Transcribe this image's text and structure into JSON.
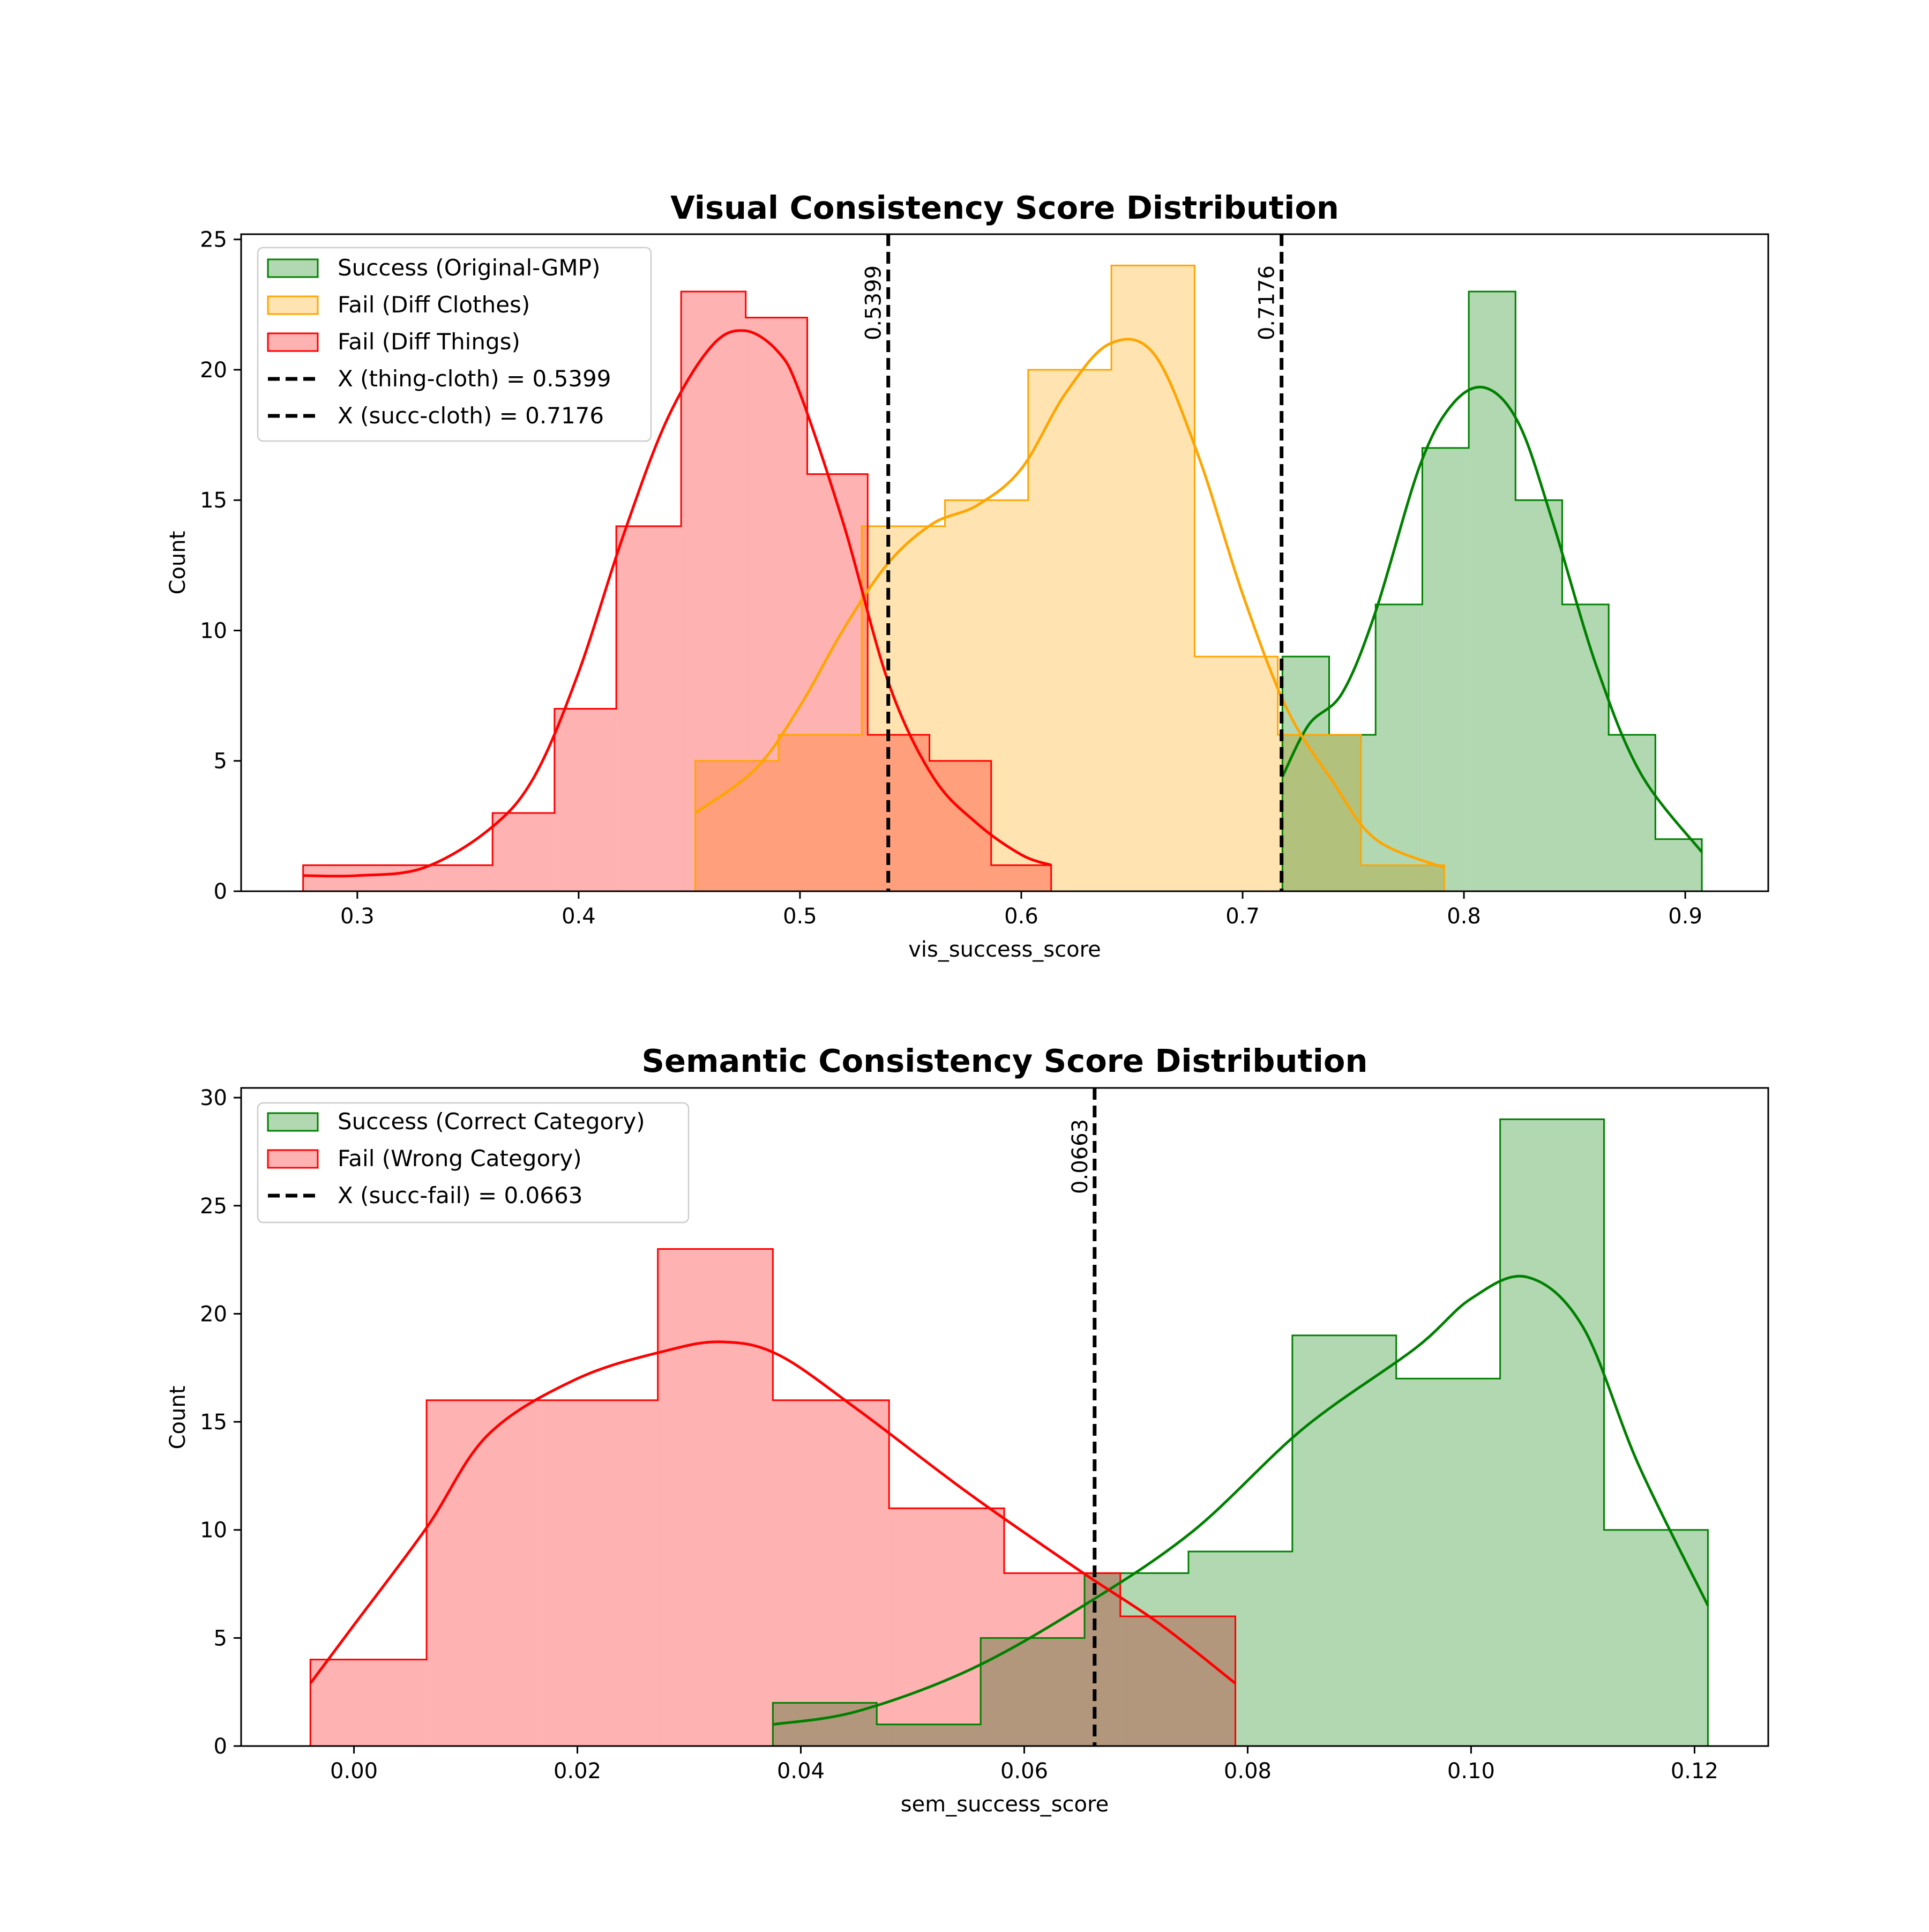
{
  "colors": {
    "success": "#008000",
    "success_fill": "#B2D8B2",
    "cloth": "#FFA500",
    "cloth_fill": "#FFE4B2",
    "thing": "#FF0000",
    "thing_fill": "#FFB2B2",
    "threshold": "#000000"
  },
  "chart_data": [
    {
      "type": "histogram",
      "title": "Visual Consistency Score Distribution",
      "xlabel": "vis_success_score",
      "ylabel": "Count",
      "xlim": [
        0.2475,
        0.9375
      ],
      "ylim": [
        0,
        25.2
      ],
      "xticks": [
        0.3,
        0.4,
        0.5,
        0.6,
        0.7,
        0.8,
        0.9
      ],
      "xtick_labels": [
        "0.3",
        "0.4",
        "0.5",
        "0.6",
        "0.7",
        "0.8",
        "0.9"
      ],
      "yticks": [
        0,
        5,
        10,
        15,
        20,
        25
      ],
      "ytick_labels": [
        "0",
        "5",
        "10",
        "15",
        "20",
        "25"
      ],
      "legend_position": "top-left",
      "series": [
        {
          "name": "Success (Original-GMP)",
          "color_key": "success",
          "bins": [
            0.718,
            0.7391,
            0.7601,
            0.7812,
            0.8022,
            0.8233,
            0.8444,
            0.8654,
            0.8865,
            0.9075
          ],
          "counts": [
            9,
            6,
            11,
            17,
            23,
            15,
            11,
            6,
            2
          ],
          "kde_x": [
            0.718,
            0.73,
            0.745,
            0.76,
            0.78,
            0.795,
            0.81,
            0.825,
            0.84,
            0.86,
            0.88,
            0.9075
          ],
          "kde_y": [
            4.4,
            6.4,
            7.6,
            10.7,
            16.3,
            18.7,
            19.3,
            17.9,
            14.2,
            8.6,
            4.5,
            1.5
          ]
        },
        {
          "name": "Fail (Diff Clothes)",
          "color_key": "cloth",
          "bins": [
            0.4527,
            0.4903,
            0.5279,
            0.5655,
            0.6031,
            0.6407,
            0.6783,
            0.7159,
            0.7535,
            0.7911
          ],
          "counts": [
            5,
            6,
            14,
            15,
            20,
            24,
            9,
            6,
            1
          ],
          "kde_x": [
            0.4527,
            0.48,
            0.5,
            0.52,
            0.54,
            0.56,
            0.58,
            0.6,
            0.62,
            0.64,
            0.66,
            0.68,
            0.7,
            0.72,
            0.74,
            0.76,
            0.7911
          ],
          "kde_y": [
            3.0,
            4.7,
            7.1,
            10.1,
            12.6,
            14.1,
            14.8,
            16.2,
            19.1,
            21.0,
            20.6,
            16.7,
            11.4,
            7.0,
            4.3,
            2.0,
            0.9
          ]
        },
        {
          "name": "Fail (Diff Things)",
          "color_key": "thing",
          "bins": [
            0.2755,
            0.3034,
            0.3313,
            0.3611,
            0.3891,
            0.417,
            0.4463,
            0.4755,
            0.5033,
            0.5306,
            0.5585,
            0.5864,
            0.6135
          ],
          "counts": [
            1,
            1,
            1,
            3,
            7,
            14,
            23,
            22,
            16,
            6,
            5,
            1
          ],
          "kde_x": [
            0.2755,
            0.3,
            0.33,
            0.36,
            0.38,
            0.4,
            0.42,
            0.44,
            0.46,
            0.475,
            0.49,
            0.5,
            0.52,
            0.54,
            0.56,
            0.58,
            0.6,
            0.6135
          ],
          "kde_y": [
            0.6,
            0.6,
            0.9,
            2.4,
            4.4,
            8.4,
            13.6,
            18.1,
            20.9,
            21.5,
            20.7,
            19.1,
            14.0,
            8.0,
            4.4,
            2.6,
            1.4,
            1.0
          ]
        }
      ],
      "thresholds": [
        {
          "name": "X (thing-cloth) = 0.5399",
          "value": 0.5399,
          "label": "0.5399"
        },
        {
          "name": "X (succ-cloth) = 0.7176",
          "value": 0.7176,
          "label": "0.7176"
        }
      ]
    },
    {
      "type": "histogram",
      "title": "Semantic Consistency Score Distribution",
      "xlabel": "sem_success_score",
      "ylabel": "Count",
      "xlim": [
        -0.0101,
        0.1266
      ],
      "ylim": [
        0,
        30.45
      ],
      "xticks": [
        0.0,
        0.02,
        0.04,
        0.06,
        0.08,
        0.1,
        0.12
      ],
      "xtick_labels": [
        "0.00",
        "0.02",
        "0.04",
        "0.06",
        "0.08",
        "0.10",
        "0.12"
      ],
      "yticks": [
        0,
        5,
        10,
        15,
        20,
        25,
        30
      ],
      "ytick_labels": [
        "0",
        "5",
        "10",
        "15",
        "20",
        "25",
        "30"
      ],
      "legend_position": "top-left",
      "series": [
        {
          "name": "Success (Correct Category)",
          "color_key": "success",
          "bins": [
            0.0375,
            0.0468,
            0.0561,
            0.0654,
            0.0747,
            0.084,
            0.0933,
            0.1026,
            0.1119,
            0.1212
          ],
          "counts": [
            2,
            1,
            5,
            8,
            9,
            19,
            17,
            29,
            10
          ],
          "kde_x": [
            0.0375,
            0.045,
            0.055,
            0.065,
            0.075,
            0.085,
            0.095,
            0.1,
            0.105,
            0.11,
            0.115,
            0.1212
          ],
          "kde_y": [
            1.0,
            1.6,
            3.5,
            6.4,
            9.9,
            14.7,
            18.4,
            20.7,
            21.7,
            19.4,
            13.0,
            6.5
          ]
        },
        {
          "name": "Fail (Wrong Category)",
          "color_key": "thing",
          "bins": [
            -0.0039,
            0.0065,
            0.0168,
            0.0272,
            0.0375,
            0.0479,
            0.0582,
            0.0686,
            0.0789
          ],
          "counts": [
            4,
            16,
            16,
            23,
            16,
            11,
            8,
            6
          ],
          "kde_x": [
            -0.0039,
            0.0,
            0.0065,
            0.012,
            0.02,
            0.028,
            0.033,
            0.038,
            0.045,
            0.055,
            0.065,
            0.072,
            0.0789
          ],
          "kde_y": [
            2.9,
            5.6,
            10.1,
            14.4,
            17.0,
            18.3,
            18.7,
            18.1,
            15.6,
            11.7,
            8.1,
            5.7,
            2.9
          ]
        }
      ],
      "thresholds": [
        {
          "name": "X (succ-fail) = 0.0663",
          "value": 0.0663,
          "label": "0.0663"
        }
      ]
    }
  ]
}
